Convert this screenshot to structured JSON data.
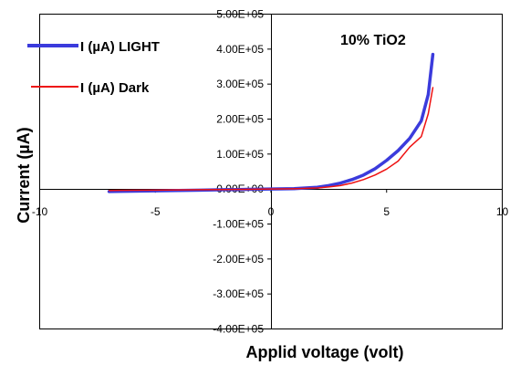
{
  "chart_data": {
    "type": "line",
    "xlabel": "Applid voltage (volt)",
    "ylabel": "Current (µA)",
    "annotation": "10% TiO2",
    "xlim": [
      -10,
      10
    ],
    "ylim": [
      -400000,
      500000
    ],
    "xticks": [
      -10,
      -5,
      0,
      5,
      10
    ],
    "xtick_labels": [
      "-10",
      "-5",
      "0",
      "5",
      "10"
    ],
    "yticks": [
      -400000,
      -300000,
      -200000,
      -100000,
      0,
      100000,
      200000,
      300000,
      400000,
      500000
    ],
    "ytick_labels": [
      "-4.00E+05",
      "-3.00E+05",
      "-2.00E+05",
      "-1.00E+05",
      "0.00E+00",
      "1.00E+05",
      "2.00E+05",
      "3.00E+05",
      "4.00E+05",
      "5.00E+05"
    ],
    "grid": false,
    "legend_position": "top-left",
    "series": [
      {
        "name": "I (µA) LIGHT",
        "color": "#3b3bdc",
        "x": [
          -7,
          -6,
          -5,
          -4,
          -3,
          -2,
          -1,
          0,
          1,
          2,
          2.5,
          3,
          3.5,
          4,
          4.5,
          5,
          5.5,
          6,
          6.5,
          6.8,
          7
        ],
        "y": [
          -7000,
          -6000,
          -5000,
          -4000,
          -3000,
          -2000,
          -1000,
          0,
          1000,
          5000,
          10000,
          17000,
          27000,
          40000,
          58000,
          82000,
          110000,
          145000,
          195000,
          270000,
          385000
        ]
      },
      {
        "name": "I (µA) Dark",
        "color": "#ee1111",
        "x": [
          -7,
          -6,
          -5,
          -4,
          -3,
          -2,
          -1,
          0,
          1,
          2,
          2.5,
          3,
          3.5,
          4,
          4.5,
          5,
          5.5,
          6,
          6.5,
          6.8,
          7
        ],
        "y": [
          -4000,
          -3500,
          -3000,
          -2500,
          -2000,
          -1500,
          -800,
          0,
          800,
          3000,
          6000,
          10000,
          17000,
          27000,
          40000,
          57000,
          80000,
          120000,
          150000,
          215000,
          290000
        ]
      }
    ]
  }
}
